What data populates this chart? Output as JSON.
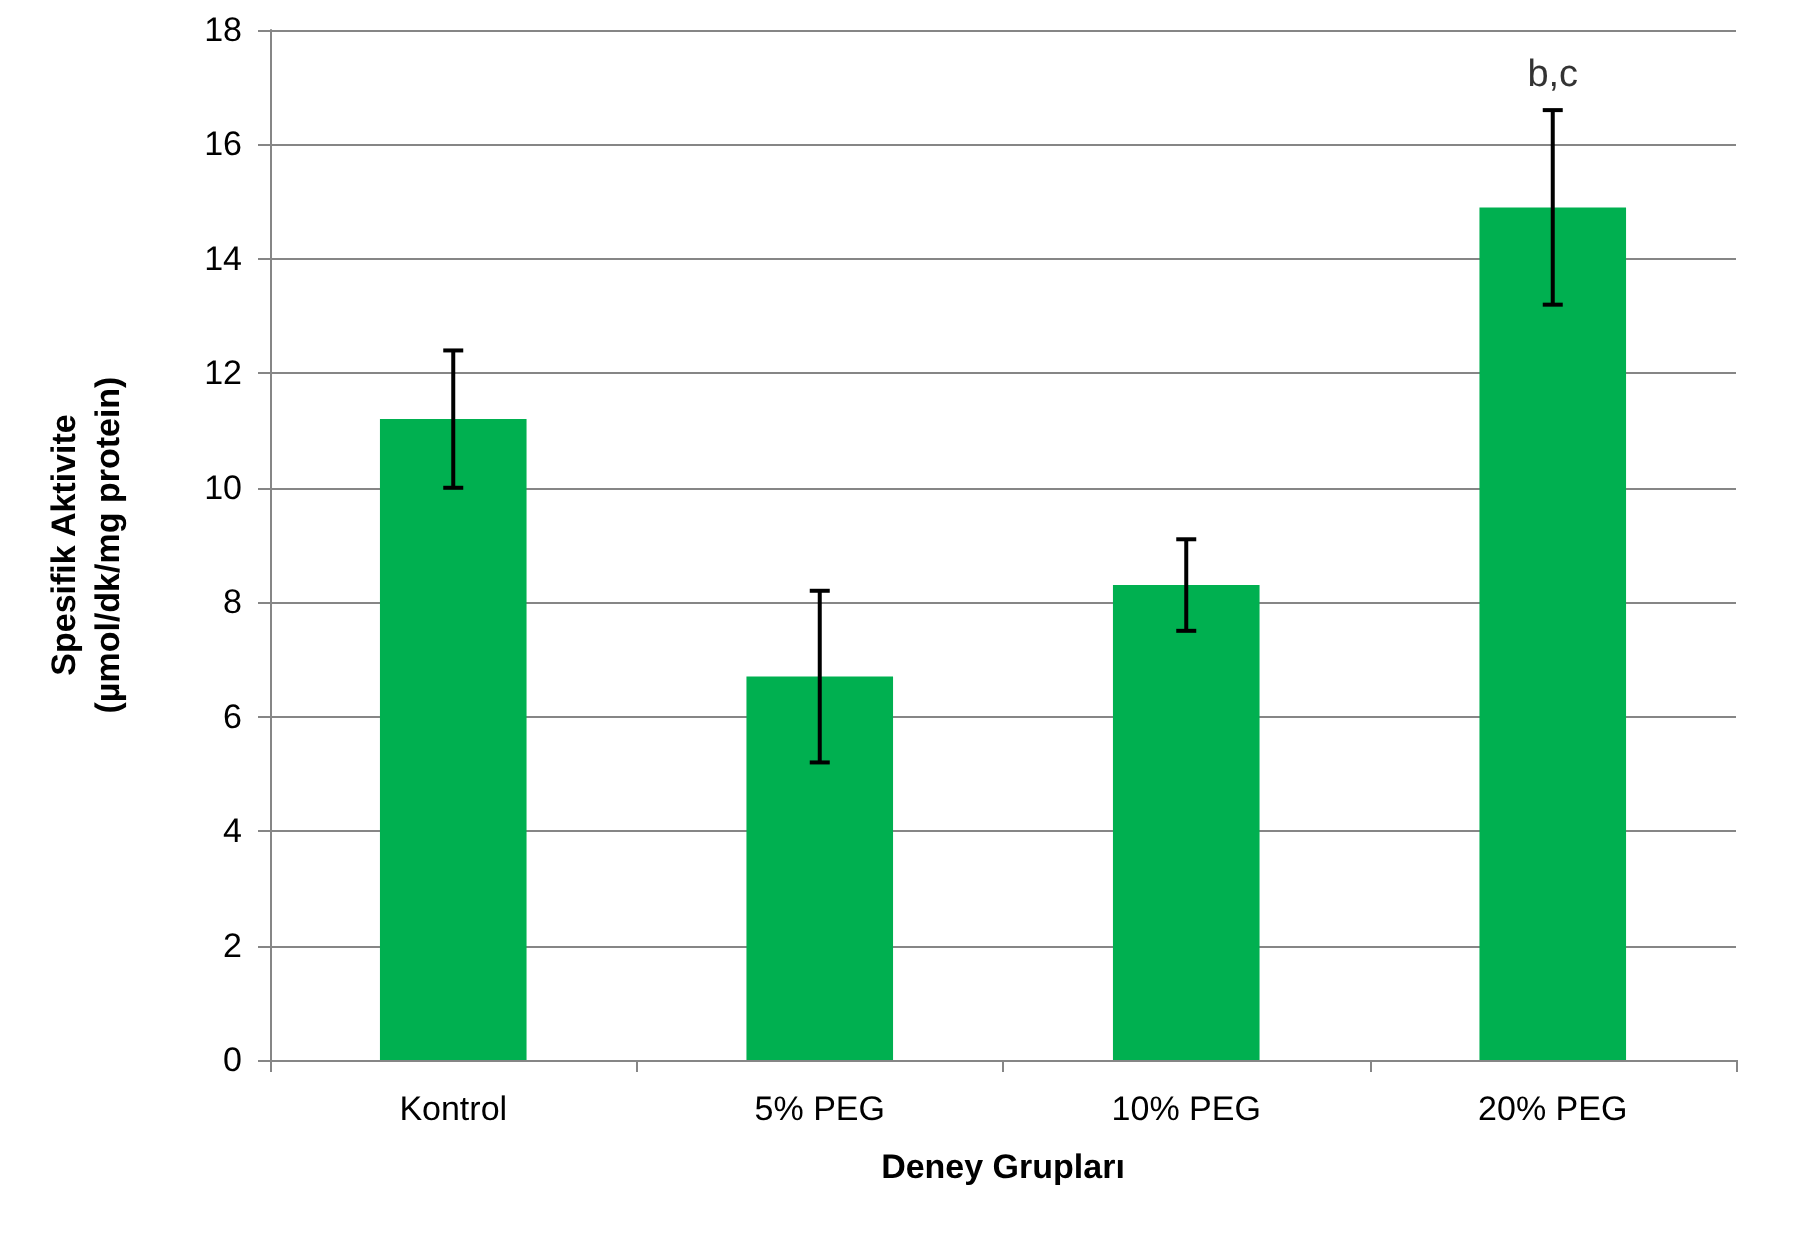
{
  "chart_data": {
    "type": "bar",
    "xlabel": "Deney Grupları",
    "ylabel": "Spesifik Aktivite\n(µmol/dk/mg protein)",
    "categories": [
      "Kontrol",
      "5% PEG",
      "10% PEG",
      "20% PEG"
    ],
    "series": [
      {
        "color": "#00b050",
        "values": [
          11.2,
          6.7,
          8.3,
          14.9
        ],
        "errors": [
          1.2,
          1.5,
          0.8,
          1.7
        ]
      }
    ],
    "annotations": [
      {
        "text": "b,c",
        "x": "20% PEG",
        "y": 16.7
      }
    ],
    "ylim": [
      0,
      18
    ],
    "yticks": [
      0,
      2,
      4,
      6,
      8,
      10,
      12,
      14,
      16,
      18
    ],
    "grid": "y"
  }
}
